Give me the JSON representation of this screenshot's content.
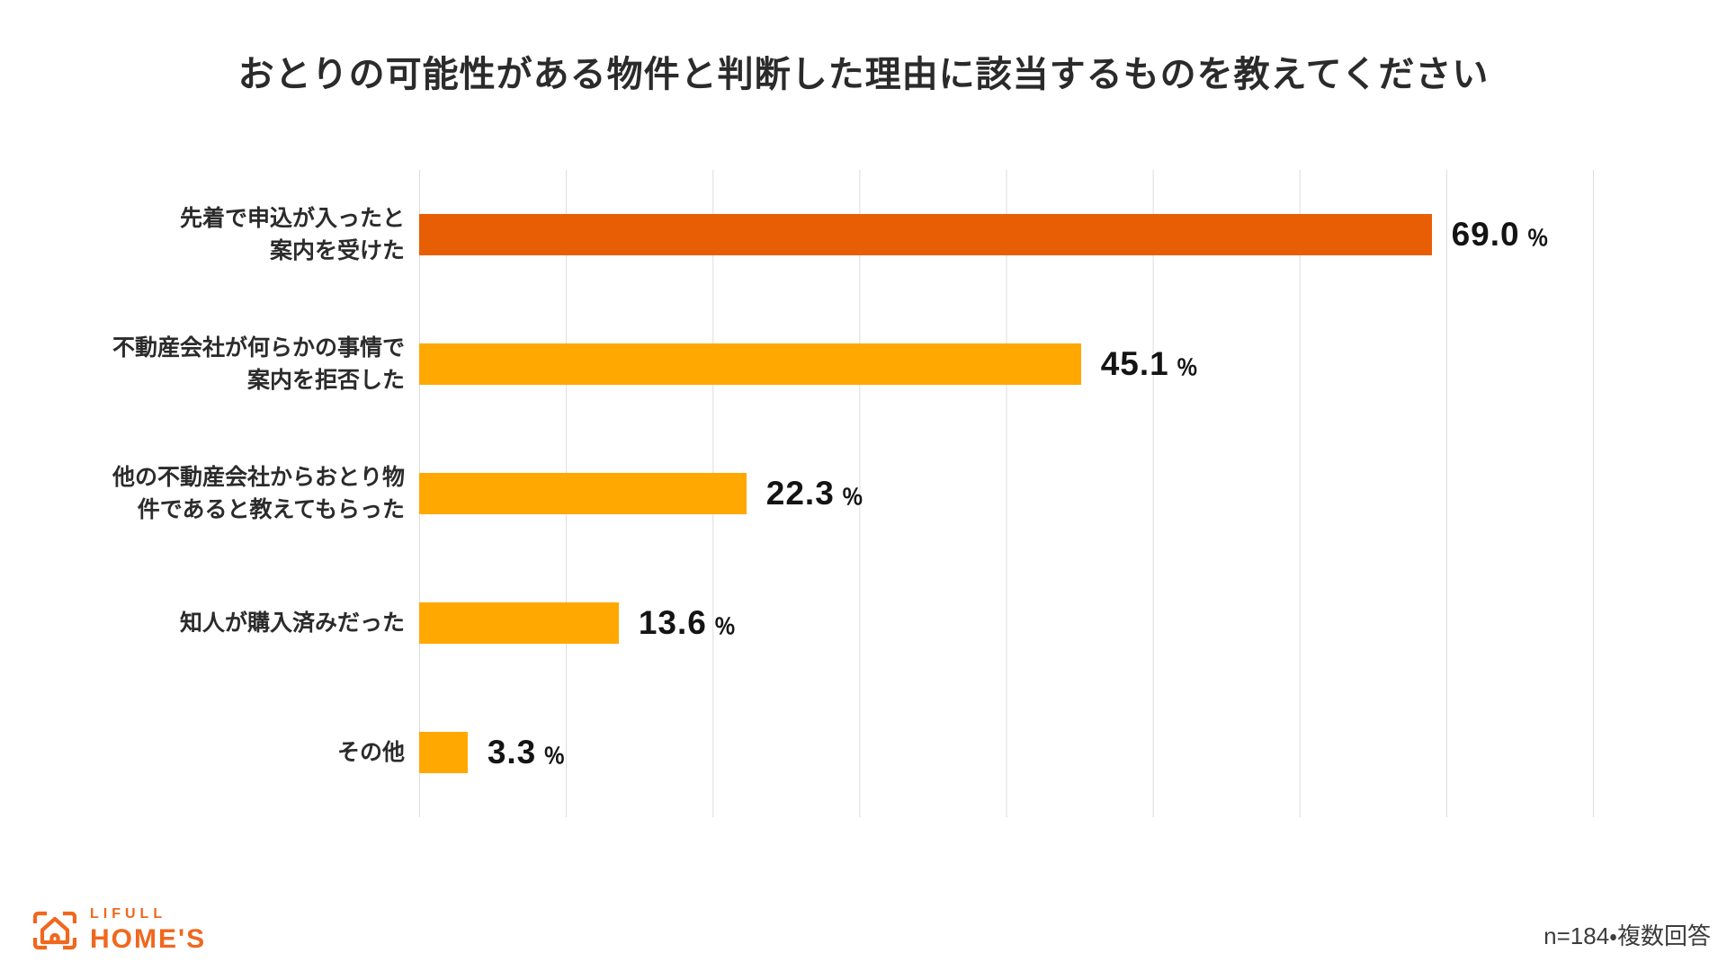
{
  "title": "おとりの可能性がある物件と判断した理由に該当するものを教えてください",
  "chart_data": {
    "type": "bar",
    "orientation": "horizontal",
    "title": "おとりの可能性がある物件と判断した理由に該当するものを教えてください",
    "categories": [
      "先着で申込が入ったと案内を受けた",
      "不動産会社が何らかの事情で案内を拒否した",
      "他の不動産会社からおとり物件であると教えてもらった",
      "知人が購入済みだった",
      "その他"
    ],
    "values": [
      69.0,
      45.1,
      22.3,
      13.6,
      3.3
    ],
    "unit": "％",
    "xlabel": "",
    "ylabel": "",
    "xlim": [
      0,
      80
    ],
    "gridline_step_pct": 10,
    "grid": true,
    "legend": "none",
    "rows": [
      {
        "label_lines": [
          "先着で申込が入ったと",
          "案内を受けた"
        ],
        "value": 69.0,
        "value_label": "69.0",
        "color": "#E85E04"
      },
      {
        "label_lines": [
          "不動産会社が何らかの事情で",
          "案内を拒否した"
        ],
        "value": 45.1,
        "value_label": "45.1",
        "color": "#FFA802"
      },
      {
        "label_lines": [
          "他の不動産会社からおとり物",
          "件であると教えてもらった"
        ],
        "value": 22.3,
        "value_label": "22.3",
        "color": "#FFA802"
      },
      {
        "label_lines": [
          "知人が購入済みだった",
          ""
        ],
        "value": 13.6,
        "value_label": "13.6",
        "color": "#FFA802"
      },
      {
        "label_lines": [
          "その他",
          ""
        ],
        "value": 3.3,
        "value_label": "3.3",
        "color": "#FFA802"
      }
    ]
  },
  "colors": {
    "highlight_bar": "#E85E04",
    "normal_bar": "#FFA802",
    "gridline": "#dcdcdc",
    "title_text": "#2b2b2b",
    "brand_orange": "#F0671E"
  },
  "footer": {
    "brand": {
      "line1": "LIFULL",
      "line2": "HOME'S"
    },
    "note": "n=184・複数回答"
  }
}
